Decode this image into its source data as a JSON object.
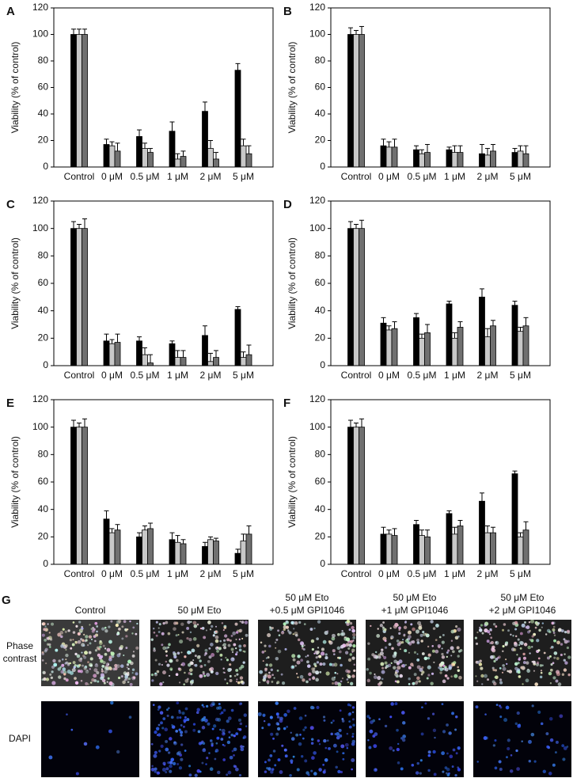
{
  "chart_data": [
    {
      "type": "bar",
      "panel_label": "A",
      "ylabel": "Viability  (% of control)",
      "categories": [
        "Control",
        "0 μM",
        "0.5 μM",
        "1 μM",
        "2 μM",
        "5 μM"
      ],
      "ylim": [
        0,
        120
      ],
      "yticks": [
        0,
        20,
        40,
        60,
        80,
        100,
        120
      ],
      "series": [
        {
          "color": "#000000",
          "values": [
            100,
            17,
            23,
            27,
            42,
            73
          ],
          "errors": [
            4,
            4,
            5,
            7,
            7,
            5
          ]
        },
        {
          "color": "#c8c8c8",
          "values": [
            100,
            16,
            14,
            6,
            14,
            16
          ],
          "errors": [
            4,
            3,
            4,
            4,
            6,
            5
          ]
        },
        {
          "color": "#707070",
          "values": [
            100,
            12,
            11,
            8,
            6,
            10
          ],
          "errors": [
            4,
            6,
            3,
            4,
            5,
            6
          ]
        }
      ]
    },
    {
      "type": "bar",
      "panel_label": "B",
      "ylabel": "Viability  (% of control)",
      "categories": [
        "Control",
        "0 μM",
        "0.5 μM",
        "1 μM",
        "2 μM",
        "5 μM"
      ],
      "ylim": [
        0,
        120
      ],
      "yticks": [
        0,
        20,
        40,
        60,
        80,
        100,
        120
      ],
      "series": [
        {
          "color": "#000000",
          "values": [
            100,
            16,
            13,
            13,
            10,
            11
          ],
          "errors": [
            5,
            5,
            3,
            2,
            7,
            3
          ]
        },
        {
          "color": "#c8c8c8",
          "values": [
            100,
            15,
            10,
            11,
            9,
            12
          ],
          "errors": [
            3,
            4,
            3,
            5,
            5,
            4
          ]
        },
        {
          "color": "#707070",
          "values": [
            100,
            15,
            11,
            11,
            12,
            10
          ],
          "errors": [
            6,
            6,
            6,
            5,
            5,
            6
          ]
        }
      ]
    },
    {
      "type": "bar",
      "panel_label": "C",
      "ylabel": "Viability  (% of control)",
      "categories": [
        "Control",
        "0 μM",
        "0.5 μM",
        "1 μM",
        "2 μM",
        "5 μM"
      ],
      "ylim": [
        0,
        120
      ],
      "yticks": [
        0,
        20,
        40,
        60,
        80,
        100,
        120
      ],
      "series": [
        {
          "color": "#000000",
          "values": [
            100,
            18,
            18,
            16,
            22,
            41
          ],
          "errors": [
            5,
            5,
            3,
            2,
            7,
            2
          ]
        },
        {
          "color": "#c8c8c8",
          "values": [
            100,
            16,
            8,
            6,
            3,
            6
          ],
          "errors": [
            3,
            3,
            5,
            5,
            6,
            4
          ]
        },
        {
          "color": "#707070",
          "values": [
            100,
            17,
            2,
            6,
            6,
            8
          ],
          "errors": [
            7,
            6,
            6,
            5,
            5,
            7
          ]
        }
      ]
    },
    {
      "type": "bar",
      "panel_label": "D",
      "ylabel": "Viability  (% of control)",
      "categories": [
        "Control",
        "0 μM",
        "0.5 μM",
        "1 μM",
        "2 μM",
        "5 μM"
      ],
      "ylim": [
        0,
        120
      ],
      "yticks": [
        0,
        20,
        40,
        60,
        80,
        100,
        120
      ],
      "series": [
        {
          "color": "#000000",
          "values": [
            100,
            31,
            35,
            45,
            50,
            44
          ],
          "errors": [
            5,
            4,
            3,
            2,
            6,
            3
          ]
        },
        {
          "color": "#c8c8c8",
          "values": [
            100,
            26,
            20,
            20,
            21,
            25
          ],
          "errors": [
            3,
            3,
            3,
            4,
            6,
            3
          ]
        },
        {
          "color": "#707070",
          "values": [
            100,
            27,
            24,
            28,
            29,
            29
          ],
          "errors": [
            6,
            5,
            6,
            4,
            4,
            6
          ]
        }
      ]
    },
    {
      "type": "bar",
      "panel_label": "E",
      "ylabel": "Viability  (% of control)",
      "categories": [
        "Control",
        "0 μM",
        "0.5 μM",
        "1 μM",
        "2 μM",
        "5 μM"
      ],
      "ylim": [
        0,
        120
      ],
      "yticks": [
        0,
        20,
        40,
        60,
        80,
        100,
        120
      ],
      "series": [
        {
          "color": "#000000",
          "values": [
            100,
            33,
            20,
            18,
            13,
            8
          ],
          "errors": [
            5,
            6,
            3,
            5,
            3,
            3
          ]
        },
        {
          "color": "#c8c8c8",
          "values": [
            100,
            23,
            25,
            16,
            18,
            17
          ],
          "errors": [
            3,
            3,
            3,
            5,
            2,
            5
          ]
        },
        {
          "color": "#707070",
          "values": [
            100,
            25,
            26,
            15,
            17,
            22
          ],
          "errors": [
            6,
            4,
            4,
            3,
            2,
            6
          ]
        }
      ]
    },
    {
      "type": "bar",
      "panel_label": "F",
      "ylabel": "Viability  (% of control)",
      "categories": [
        "Control",
        "0 μM",
        "0.5 μM",
        "1 μM",
        "2 μM",
        "5 μM"
      ],
      "ylim": [
        0,
        120
      ],
      "yticks": [
        0,
        20,
        40,
        60,
        80,
        100,
        120
      ],
      "series": [
        {
          "color": "#000000",
          "values": [
            100,
            22,
            29,
            37,
            46,
            66
          ],
          "errors": [
            5,
            5,
            3,
            2,
            6,
            2
          ]
        },
        {
          "color": "#c8c8c8",
          "values": [
            100,
            22,
            21,
            22,
            23,
            20
          ],
          "errors": [
            3,
            3,
            4,
            5,
            5,
            3
          ]
        },
        {
          "color": "#707070",
          "values": [
            100,
            21,
            20,
            28,
            23,
            25
          ],
          "errors": [
            6,
            5,
            5,
            4,
            4,
            6
          ]
        }
      ]
    }
  ],
  "panel_g": {
    "label": "G",
    "columns": [
      [
        "Control"
      ],
      [
        "50 μM Eto"
      ],
      [
        "50 μM Eto",
        "+0.5 μM GPI1046"
      ],
      [
        "50 μM Eto",
        "+1 μM GPI1046"
      ],
      [
        "50 μM Eto",
        "+2 μM GPI1046"
      ]
    ],
    "rows": [
      [
        "Phase",
        "contrast"
      ],
      [
        "DAPI"
      ]
    ]
  }
}
